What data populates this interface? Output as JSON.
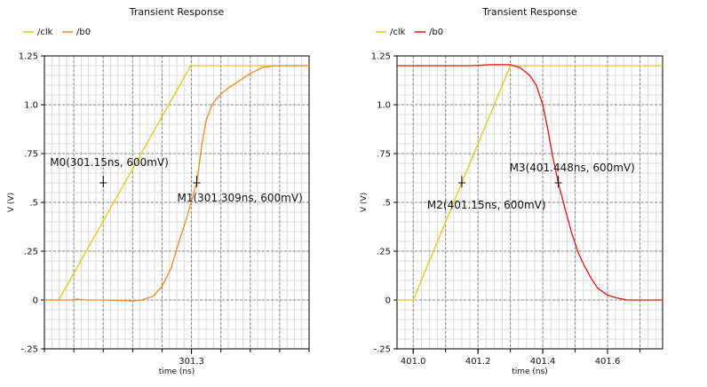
{
  "colors": {
    "clk": "#e6c619",
    "b0_left": "#f08a1c",
    "b0_right": "#e3140e",
    "background": "#ffffff"
  },
  "chart_data": [
    {
      "type": "line",
      "title": "Transient Response",
      "xlabel": "time (ns)",
      "ylabel": "V (V)",
      "xlim": [
        301.05,
        301.5
      ],
      "ylim": [
        -0.25,
        1.25
      ],
      "x_ticks": [
        {
          "value": 301.3,
          "label": "301.3"
        }
      ],
      "y_ticks": [
        {
          "value": 1.25,
          "label": "1.25"
        },
        {
          "value": 1.0,
          "label": "1.0"
        },
        {
          "value": 0.75,
          "label": ".75"
        },
        {
          "value": 0.5,
          "label": ".5"
        },
        {
          "value": 0.25,
          "label": ".25"
        },
        {
          "value": 0.0,
          "label": "0"
        },
        {
          "value": -0.25,
          "label": "-.25"
        }
      ],
      "legend": [
        "/clk",
        "/b0"
      ],
      "legend_position": "top-left",
      "grid": true,
      "series": [
        {
          "name": "/clk",
          "color": "clk",
          "x": [
            301.05,
            301.0743,
            301.2988,
            301.5
          ],
          "y": [
            0.0,
            0.0,
            1.2,
            1.2
          ]
        },
        {
          "name": "/b0",
          "color": "b0_left",
          "x": [
            301.05,
            301.095,
            301.105,
            301.12,
            301.155,
            301.2,
            301.215,
            301.235,
            301.25,
            301.265,
            301.278,
            301.292,
            301.304,
            301.309,
            301.318,
            301.325,
            301.335,
            301.345,
            301.36,
            301.38,
            301.4,
            301.42,
            301.44,
            301.5
          ],
          "y": [
            0.0,
            0.0,
            0.005,
            0.0,
            0.0,
            -0.005,
            0.0,
            0.02,
            0.07,
            0.16,
            0.29,
            0.42,
            0.55,
            0.6,
            0.8,
            0.92,
            1.0,
            1.04,
            1.08,
            1.12,
            1.16,
            1.19,
            1.2,
            1.2
          ]
        }
      ],
      "markers": [
        {
          "label": "M0(301.15ns, 600mV)",
          "x": 301.15,
          "y": 0.6
        },
        {
          "label": "M1(301.309ns, 600mV)",
          "x": 301.309,
          "y": 0.6
        }
      ]
    },
    {
      "type": "line",
      "title": "Transient Response",
      "xlabel": "time (ns)",
      "ylabel": "V (V)",
      "xlim": [
        400.95,
        401.77
      ],
      "ylim": [
        -0.25,
        1.25
      ],
      "x_ticks": [
        {
          "value": 401.0,
          "label": "401.0"
        },
        {
          "value": 401.2,
          "label": "401.2"
        },
        {
          "value": 401.4,
          "label": "401.4"
        },
        {
          "value": 401.6,
          "label": "401.6"
        }
      ],
      "y_ticks": [
        {
          "value": 1.25,
          "label": "1.25"
        },
        {
          "value": 1.0,
          "label": "1.0"
        },
        {
          "value": 0.75,
          "label": ".75"
        },
        {
          "value": 0.5,
          "label": ".5"
        },
        {
          "value": 0.25,
          "label": ".25"
        },
        {
          "value": 0.0,
          "label": "0"
        },
        {
          "value": -0.25,
          "label": "-.25"
        }
      ],
      "legend": [
        "/clk",
        "/b0"
      ],
      "legend_position": "top-left",
      "grid": true,
      "series": [
        {
          "name": "/clk",
          "color": "clk",
          "x": [
            400.95,
            401.0,
            401.3,
            401.77
          ],
          "y": [
            0.0,
            0.0,
            1.2,
            1.2
          ]
        },
        {
          "name": "/b0",
          "color": "b0_right",
          "x": [
            400.95,
            401.18,
            401.24,
            401.3,
            401.33,
            401.36,
            401.38,
            401.4,
            401.415,
            401.43,
            401.448,
            401.47,
            401.49,
            401.51,
            401.53,
            401.55,
            401.57,
            401.6,
            401.63,
            401.66,
            401.7,
            401.77
          ],
          "y": [
            1.2,
            1.2,
            1.205,
            1.205,
            1.19,
            1.15,
            1.1,
            1.0,
            0.88,
            0.74,
            0.6,
            0.46,
            0.34,
            0.24,
            0.17,
            0.11,
            0.06,
            0.025,
            0.01,
            0.0,
            0.0,
            0.0
          ]
        }
      ],
      "markers": [
        {
          "label": "M2(401.15ns, 600mV)",
          "x": 401.15,
          "y": 0.6
        },
        {
          "label": "M3(401.448ns, 600mV)",
          "x": 401.448,
          "y": 0.6
        }
      ]
    }
  ]
}
